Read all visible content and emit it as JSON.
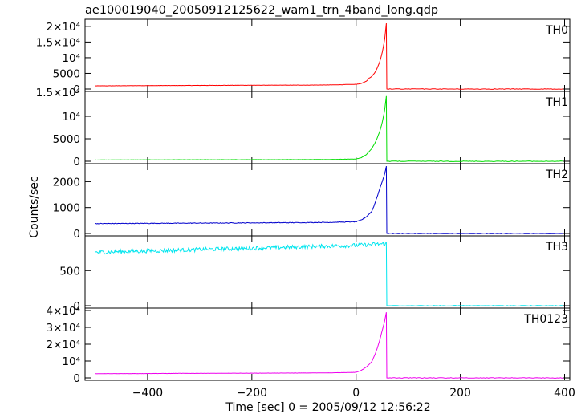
{
  "chart_data": {
    "type": "line",
    "title": "ae100019040_20050912125622_wam1_trn_4band_long.qdp",
    "xlabel": "Time [sec] 0 = 2005/09/12 12:56:22",
    "ylabel": "Counts/sec",
    "xlim": [
      -520,
      410
    ],
    "x_ticks": [
      -400,
      -200,
      0,
      200,
      400
    ],
    "x_tick_labels": [
      "−400",
      "−200",
      "0",
      "200",
      "400"
    ],
    "panels": [
      {
        "name": "TH0",
        "color": "#ff0000",
        "ylim": [
          0,
          21500
        ],
        "y_ticks": [
          0,
          5000,
          10000,
          15000,
          20000
        ],
        "y_tick_labels": [
          "0",
          "5000",
          "10⁴",
          "1.5×10⁴",
          "2×10⁴"
        ],
        "overlap_label": "",
        "noise": 40,
        "x": [
          -500,
          -400,
          -300,
          -200,
          -100,
          -50,
          0,
          10,
          20,
          25,
          30,
          35,
          40,
          45,
          50,
          55,
          58,
          59,
          400
        ],
        "y": [
          1000,
          1100,
          1150,
          1200,
          1250,
          1300,
          1500,
          1800,
          2500,
          3500,
          4000,
          5000,
          6500,
          8500,
          11500,
          16000,
          21000,
          0,
          0
        ]
      },
      {
        "name": "TH1",
        "color": "#00dd00",
        "ylim": [
          0,
          15000
        ],
        "y_ticks": [
          0,
          5000,
          10000
        ],
        "y_tick_labels": [
          "0",
          "5000",
          "10⁴"
        ],
        "overlap_label": "1.5×10⁴",
        "noise": 30,
        "x": [
          -500,
          -400,
          -300,
          -200,
          -100,
          -50,
          0,
          10,
          20,
          25,
          30,
          35,
          40,
          45,
          50,
          55,
          58,
          59,
          400
        ],
        "y": [
          300,
          320,
          340,
          350,
          370,
          400,
          500,
          800,
          1500,
          2200,
          2800,
          3800,
          5000,
          6500,
          8500,
          11500,
          14500,
          0,
          0
        ]
      },
      {
        "name": "TH2",
        "color": "#0000cc",
        "ylim": [
          0,
          2600
        ],
        "y_ticks": [
          0,
          1000,
          2000
        ],
        "y_tick_labels": [
          "0",
          "1000",
          "2000"
        ],
        "overlap_label": "",
        "noise": 12,
        "x": [
          -500,
          -400,
          -300,
          -200,
          -100,
          -50,
          0,
          10,
          20,
          25,
          30,
          35,
          40,
          45,
          50,
          55,
          58,
          59,
          400
        ],
        "y": [
          380,
          390,
          400,
          410,
          420,
          430,
          450,
          520,
          650,
          750,
          850,
          1100,
          1400,
          1700,
          2000,
          2300,
          2600,
          0,
          0
        ]
      },
      {
        "name": "TH3",
        "color": "#00e5ee",
        "ylim": [
          0,
          960
        ],
        "y_ticks": [
          0,
          500
        ],
        "y_tick_labels": [
          "0",
          "500"
        ],
        "overlap_label": "",
        "noise": 28,
        "x": [
          -500,
          -400,
          -300,
          -200,
          -100,
          0,
          50,
          58,
          59,
          400
        ],
        "y": [
          760,
          780,
          800,
          820,
          840,
          860,
          880,
          880,
          0,
          0
        ]
      },
      {
        "name": "TH0123",
        "color": "#ee00ee",
        "ylim": [
          0,
          40000
        ],
        "y_ticks": [
          0,
          10000,
          20000,
          30000,
          40000
        ],
        "y_tick_labels": [
          "0",
          "10⁴",
          "2×10⁴",
          "3×10⁴",
          "4×10⁴"
        ],
        "overlap_label": "",
        "noise": 60,
        "x": [
          -500,
          -400,
          -300,
          -200,
          -100,
          -50,
          0,
          10,
          20,
          25,
          30,
          35,
          40,
          45,
          50,
          55,
          58,
          59,
          400
        ],
        "y": [
          2500,
          2600,
          2700,
          2800,
          2900,
          3000,
          3300,
          4500,
          6500,
          8000,
          9500,
          13000,
          17000,
          22000,
          28000,
          34000,
          39000,
          0,
          0
        ]
      }
    ]
  }
}
